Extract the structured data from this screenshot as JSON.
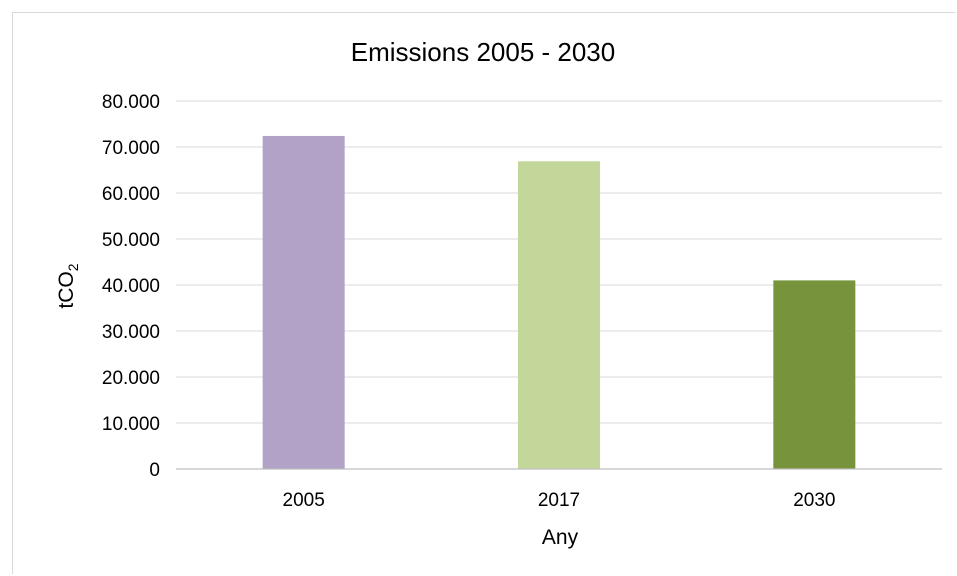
{
  "chart_data": {
    "type": "bar",
    "title": "Emissions 2005 - 2030",
    "xlabel": "Any",
    "ylabel": "tCO",
    "ylabel_subscript": "2",
    "categories": [
      "2005",
      "2017",
      "2030"
    ],
    "values": [
      72400,
      66900,
      41000
    ],
    "bar_colors": [
      "#b3a2c7",
      "#c4d79b",
      "#77933c"
    ],
    "ylim": [
      0,
      80000
    ],
    "yticks": [
      0,
      10000,
      20000,
      30000,
      40000,
      50000,
      60000,
      70000,
      80000
    ],
    "ytick_labels": [
      "0",
      "10.000",
      "20.000",
      "30.000",
      "40.000",
      "50.000",
      "60.000",
      "70.000",
      "80.000"
    ],
    "grid": true,
    "legend": false
  }
}
